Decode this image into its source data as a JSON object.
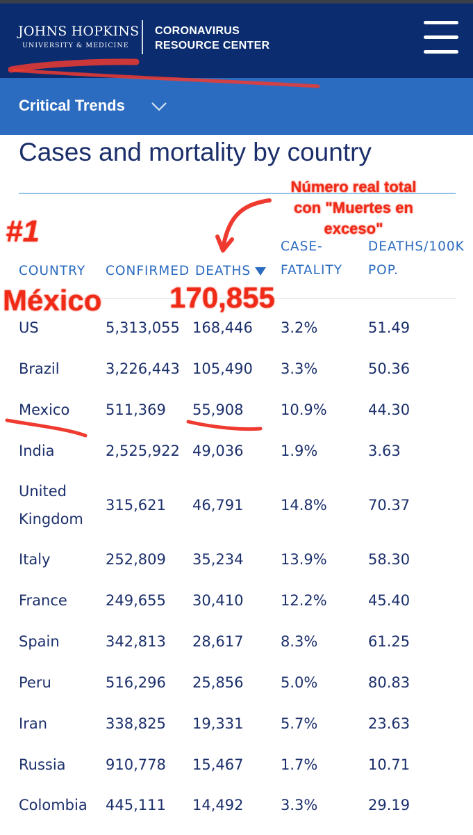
{
  "header": {
    "logo_main": "JOHNS HOPKINS",
    "logo_sub": "UNIVERSITY & MEDICINE",
    "site_name_line1": "CORONAVIRUS",
    "site_name_line2": "RESOURCE CENTER",
    "menu_icon": "hamburger-menu-icon"
  },
  "subnav": {
    "label": "Critical Trends",
    "icon": "chevron-down-icon"
  },
  "page_title": "Cases and mortality by country",
  "table": {
    "columns": {
      "country": "COUNTRY",
      "confirmed": "CONFIRMED",
      "deaths": "DEATHS",
      "cfr_line1": "CASE-",
      "cfr_line2": "FATALITY",
      "per100k_line1": "DEATHS/100K",
      "per100k_line2": "POP."
    },
    "sort_icon": "sort-descending-icon",
    "rows": [
      {
        "country": "US",
        "confirmed": "5,313,055",
        "deaths": "168,446",
        "cfr": "3.2%",
        "per100k": "51.49"
      },
      {
        "country": "Brazil",
        "confirmed": "3,226,443",
        "deaths": "105,490",
        "cfr": "3.3%",
        "per100k": "50.36"
      },
      {
        "country": "Mexico",
        "confirmed": "511,369",
        "deaths": "55,908",
        "cfr": "10.9%",
        "per100k": "44.30"
      },
      {
        "country": "India",
        "confirmed": "2,525,922",
        "deaths": "49,036",
        "cfr": "1.9%",
        "per100k": "3.63"
      },
      {
        "country": "United Kingdom",
        "confirmed": "315,621",
        "deaths": "46,791",
        "cfr": "14.8%",
        "per100k": "70.37"
      },
      {
        "country": "Italy",
        "confirmed": "252,809",
        "deaths": "35,234",
        "cfr": "13.9%",
        "per100k": "58.30"
      },
      {
        "country": "France",
        "confirmed": "249,655",
        "deaths": "30,410",
        "cfr": "12.2%",
        "per100k": "45.40"
      },
      {
        "country": "Spain",
        "confirmed": "342,813",
        "deaths": "28,617",
        "cfr": "8.3%",
        "per100k": "61.25"
      },
      {
        "country": "Peru",
        "confirmed": "516,296",
        "deaths": "25,856",
        "cfr": "5.0%",
        "per100k": "80.83"
      },
      {
        "country": "Iran",
        "confirmed": "338,825",
        "deaths": "19,331",
        "cfr": "5.7%",
        "per100k": "23.63"
      },
      {
        "country": "Russia",
        "confirmed": "910,778",
        "deaths": "15,467",
        "cfr": "1.7%",
        "per100k": "10.71"
      },
      {
        "country": "Colombia",
        "confirmed": "445,111",
        "deaths": "14,492",
        "cfr": "3.3%",
        "per100k": "29.19"
      }
    ]
  },
  "annotations": {
    "note_line1": "Número real total",
    "note_line2": "con \"Muertes en",
    "note_line3": "exceso\"",
    "rank": "#1",
    "country": "México",
    "deaths": "170,855",
    "color": "#ef2a17"
  },
  "colors": {
    "header_bg": "#0b2c6f",
    "subnav_bg": "#2c6cc0",
    "text": "#1b2f6b",
    "column_header": "#2c6cc0"
  }
}
